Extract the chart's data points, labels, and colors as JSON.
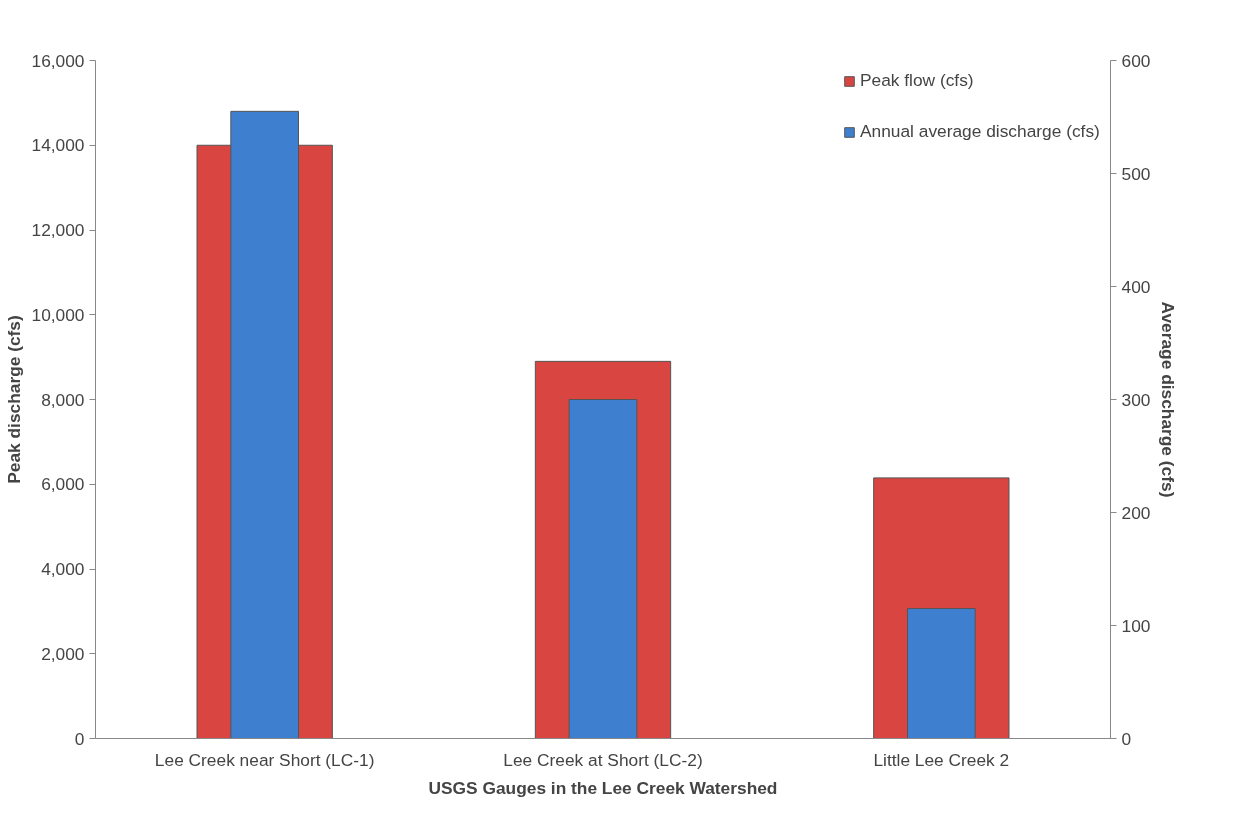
{
  "chart_data": {
    "type": "bar",
    "xlabel": "USGS Gauges in the Lee Creek Watershed",
    "ylabel": "Peak discharge (cfs)",
    "y2label": "Average discharge (cfs)",
    "categories": [
      "Lee Creek near Short (LC-1)",
      "Lee Creek at Short (LC-2)",
      "Little Lee Creek 2"
    ],
    "series": [
      {
        "name": "Peak flow (cfs)",
        "color": "#d94541",
        "values": [
          14000,
          8900,
          6150
        ]
      },
      {
        "name": "Annual average discharge (cfs)",
        "color": "#3f7fcf",
        "values": [
          555,
          300,
          115
        ],
        "axis": "y2"
      }
    ],
    "ylim": [
      0,
      16000
    ],
    "yticks": [
      {
        "value": 0,
        "label": "0"
      },
      {
        "value": 2000,
        "label": "2,000"
      },
      {
        "value": 4000,
        "label": "4,000"
      },
      {
        "value": 6000,
        "label": "6,000"
      },
      {
        "value": 8000,
        "label": "8,000"
      },
      {
        "value": 10000,
        "label": "10,000"
      },
      {
        "value": 12000,
        "label": "12,000"
      },
      {
        "value": 14000,
        "label": "14,000"
      },
      {
        "value": 16000,
        "label": "16,000"
      }
    ],
    "y2lim": [
      0,
      600
    ],
    "y2ticks": [
      0,
      100,
      200,
      300,
      400,
      500,
      600
    ],
    "grid": false,
    "legend": "top right"
  }
}
